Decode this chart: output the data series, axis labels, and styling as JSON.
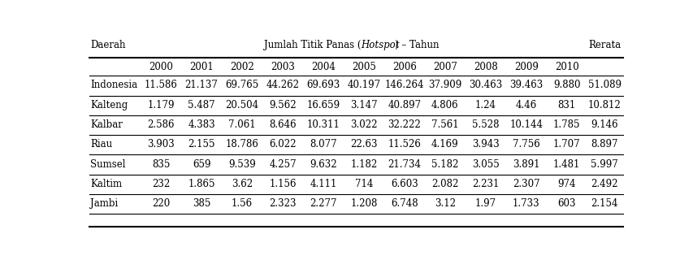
{
  "col_header_left": "Daerah",
  "col_header_right": "Rerata",
  "years": [
    "2000",
    "2001",
    "2002",
    "2003",
    "2004",
    "2005",
    "2006",
    "2007",
    "2008",
    "2009",
    "2010"
  ],
  "rows": [
    {
      "daerah": "Indonesia",
      "values": [
        "11.586",
        "21.137",
        "69.765",
        "44.262",
        "69.693",
        "40.197",
        "146.264",
        "37.909",
        "30.463",
        "39.463",
        "9.880"
      ],
      "rerata": "51.089"
    },
    {
      "daerah": "Kalteng",
      "values": [
        "1.179",
        "5.487",
        "20.504",
        "9.562",
        "16.659",
        "3.147",
        "40.897",
        "4.806",
        "1.24",
        "4.46",
        "831"
      ],
      "rerata": "10.812"
    },
    {
      "daerah": "Kalbar",
      "values": [
        "2.586",
        "4.383",
        "7.061",
        "8.646",
        "10.311",
        "3.022",
        "32.222",
        "7.561",
        "5.528",
        "10.144",
        "1.785"
      ],
      "rerata": "9.146"
    },
    {
      "daerah": "Riau",
      "values": [
        "3.903",
        "2.155",
        "18.786",
        "6.022",
        "8.077",
        "22.63",
        "11.526",
        "4.169",
        "3.943",
        "7.756",
        "1.707"
      ],
      "rerata": "8.897"
    },
    {
      "daerah": "Sumsel",
      "values": [
        "835",
        "659",
        "9.539",
        "4.257",
        "9.632",
        "1.182",
        "21.734",
        "5.182",
        "3.055",
        "3.891",
        "1.481"
      ],
      "rerata": "5.997"
    },
    {
      "daerah": "Kaltim",
      "values": [
        "232",
        "1.865",
        "3.62",
        "1.156",
        "4.111",
        "714",
        "6.603",
        "2.082",
        "2.231",
        "2.307",
        "974"
      ],
      "rerata": "2.492"
    },
    {
      "daerah": "Jambi",
      "values": [
        "220",
        "385",
        "1.56",
        "2.323",
        "2.277",
        "1.208",
        "6.748",
        "3.12",
        "1.97",
        "1.733",
        "603"
      ],
      "rerata": "2.154"
    }
  ],
  "bg_color": "#ffffff",
  "text_color": "#000000",
  "line_color": "#000000",
  "font_size": 8.5,
  "title_prefix": "Jumlah Titik Panas (",
  "title_italic": "Hotspot",
  "title_suffix": ") – Tahun"
}
